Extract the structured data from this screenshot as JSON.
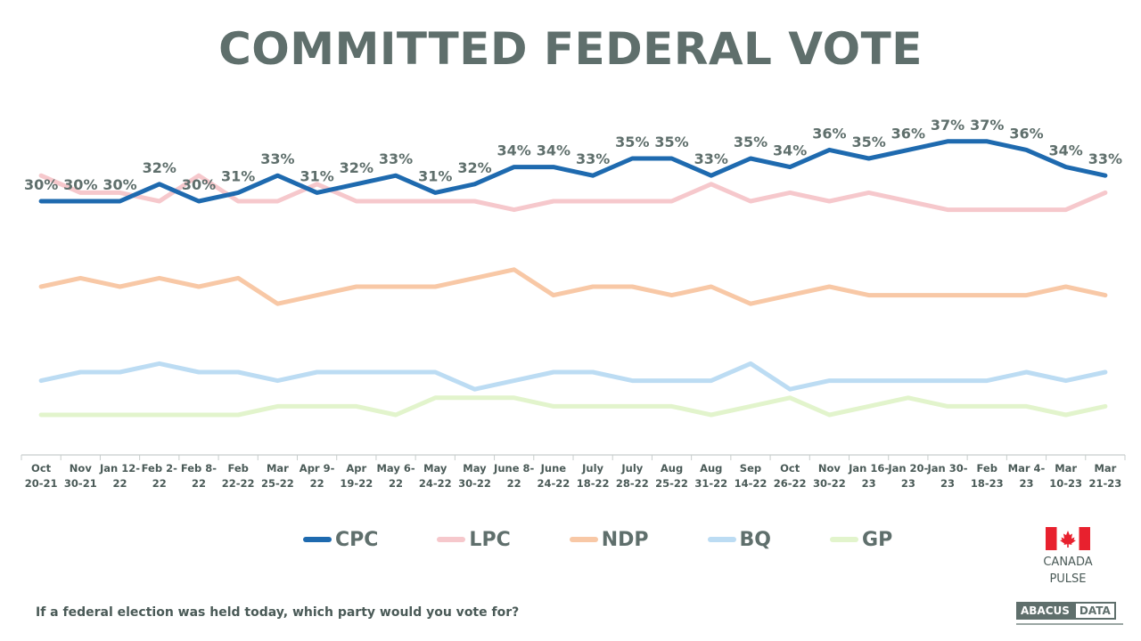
{
  "chart_data": {
    "type": "line",
    "title": "COMMITTED FEDERAL VOTE",
    "categories": [
      [
        "Oct",
        "20-21"
      ],
      [
        "Nov",
        "30-21"
      ],
      [
        "Jan 12-",
        "22"
      ],
      [
        "Feb 2-",
        "22"
      ],
      [
        "Feb 8-",
        "22"
      ],
      [
        "Feb",
        "22-22"
      ],
      [
        "Mar",
        "25-22"
      ],
      [
        "Apr 9-",
        "22"
      ],
      [
        "Apr",
        "19-22"
      ],
      [
        "May 6-",
        "22"
      ],
      [
        "May",
        "24-22"
      ],
      [
        "May",
        "30-22"
      ],
      [
        "June 8-",
        "22"
      ],
      [
        "June",
        "24-22"
      ],
      [
        "July",
        "18-22"
      ],
      [
        "July",
        "28-22"
      ],
      [
        "Aug",
        "25-22"
      ],
      [
        "Aug",
        "31-22"
      ],
      [
        "Sep",
        "14-22"
      ],
      [
        "Oct",
        "26-22"
      ],
      [
        "Nov",
        "30-22"
      ],
      [
        "Jan 16-",
        "23"
      ],
      [
        "Jan 20-",
        "23"
      ],
      [
        "Jan 30-",
        "23"
      ],
      [
        "Feb",
        "18-23"
      ],
      [
        "Mar 4-",
        "23"
      ],
      [
        "Mar",
        "10-23"
      ],
      [
        "Mar",
        "21-23"
      ]
    ],
    "ylim": [
      0,
      40
    ],
    "series": [
      {
        "name": "CPC",
        "color": "#1e6aaf",
        "labeled": true,
        "values": [
          30,
          30,
          30,
          32,
          30,
          31,
          33,
          31,
          32,
          33,
          31,
          32,
          34,
          34,
          33,
          35,
          35,
          33,
          35,
          34,
          36,
          35,
          36,
          37,
          37,
          36,
          34,
          33
        ]
      },
      {
        "name": "LPC",
        "color": "#f6c8cc",
        "labeled": false,
        "values": [
          33,
          31,
          31,
          30,
          33,
          30,
          30,
          32,
          30,
          30,
          30,
          30,
          29,
          30,
          30,
          30,
          30,
          32,
          30,
          31,
          30,
          31,
          30,
          29,
          29,
          29,
          29,
          31
        ]
      },
      {
        "name": "NDP",
        "color": "#f8c8a6",
        "labeled": false,
        "values": [
          20,
          21,
          20,
          21,
          20,
          21,
          18,
          19,
          20,
          20,
          20,
          21,
          22,
          19,
          20,
          20,
          19,
          20,
          18,
          19,
          20,
          19,
          19,
          19,
          19,
          19,
          20,
          19
        ]
      },
      {
        "name": "BQ",
        "color": "#bcdcf3",
        "labeled": false,
        "values": [
          9,
          10,
          10,
          11,
          10,
          10,
          9,
          10,
          10,
          10,
          10,
          8,
          9,
          10,
          10,
          9,
          9,
          9,
          11,
          8,
          9,
          9,
          9,
          9,
          9,
          10,
          9,
          10
        ]
      },
      {
        "name": "GP",
        "color": "#e2f4cc",
        "labeled": false,
        "values": [
          5,
          5,
          5,
          5,
          5,
          5,
          6,
          6,
          6,
          5,
          7,
          7,
          7,
          6,
          6,
          6,
          6,
          5,
          6,
          7,
          5,
          6,
          7,
          6,
          6,
          6,
          5,
          6
        ]
      }
    ],
    "label_suffix": "%",
    "legend_position": "bottom"
  },
  "legend": [
    {
      "label": "CPC",
      "color": "#1e6aaf"
    },
    {
      "label": "LPC",
      "color": "#f6c8cc"
    },
    {
      "label": "NDP",
      "color": "#f8c8a6"
    },
    {
      "label": "BQ",
      "color": "#bcdcf3"
    },
    {
      "label": "GP",
      "color": "#e2f4cc"
    }
  ],
  "footer": {
    "question": "If a federal election was held today, which party would you vote for?",
    "brand_part1": "ABACUS",
    "brand_part2": "DATA"
  },
  "logo": {
    "icon": "canada-flag-icon",
    "line1": "CANADA",
    "line2": "PULSE",
    "flag_red": "#e8212e"
  }
}
